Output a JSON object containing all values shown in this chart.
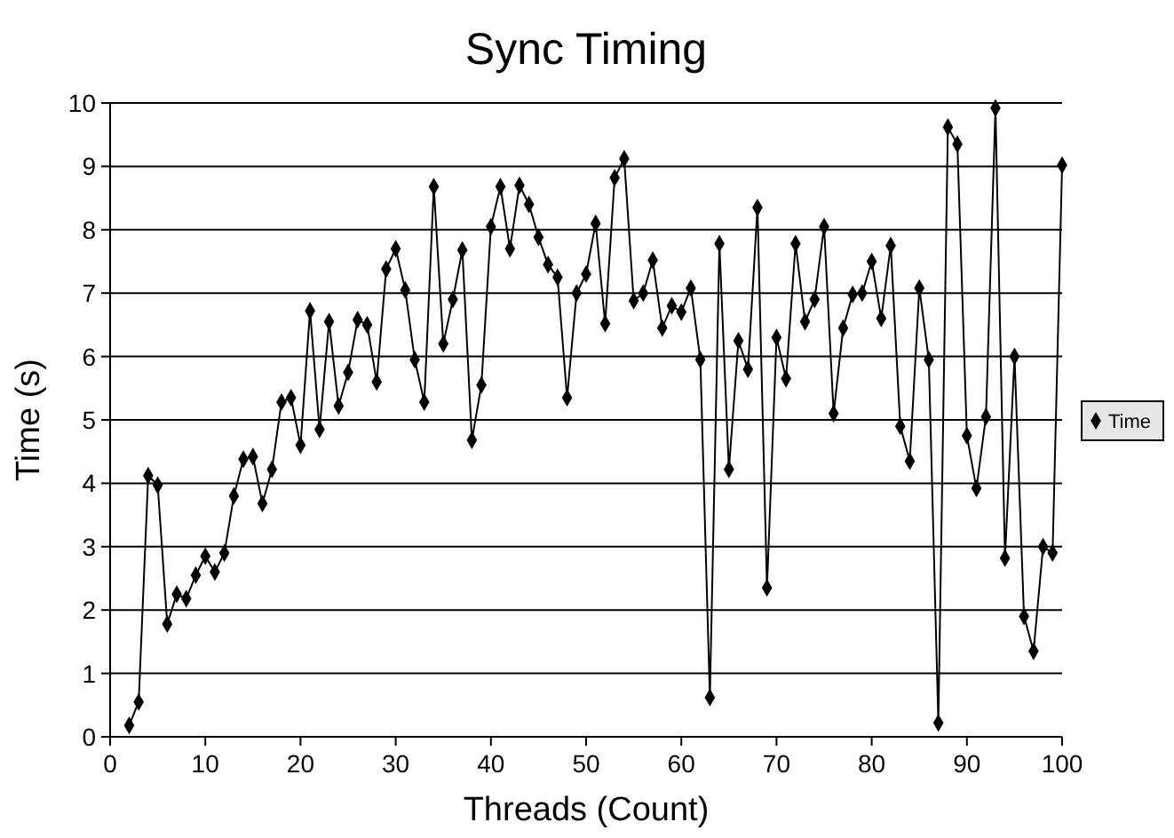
{
  "chart_data": {
    "type": "line",
    "title": "Sync Timing",
    "xlabel": "Threads (Count)",
    "ylabel": "Time (s)",
    "x": [
      2,
      3,
      4,
      5,
      6,
      7,
      8,
      9,
      10,
      11,
      12,
      13,
      14,
      15,
      16,
      17,
      18,
      19,
      20,
      21,
      22,
      23,
      24,
      25,
      26,
      27,
      28,
      29,
      30,
      31,
      32,
      33,
      34,
      35,
      36,
      37,
      38,
      39,
      40,
      41,
      42,
      43,
      44,
      45,
      46,
      47,
      48,
      49,
      50,
      51,
      52,
      53,
      54,
      55,
      56,
      57,
      58,
      59,
      60,
      61,
      62,
      63,
      64,
      65,
      66,
      67,
      68,
      69,
      70,
      71,
      72,
      73,
      74,
      75,
      76,
      77,
      78,
      79,
      80,
      81,
      82,
      83,
      84,
      85,
      86,
      87,
      88,
      89,
      90,
      91,
      92,
      93,
      94,
      95,
      96,
      97,
      98,
      99,
      100
    ],
    "series": [
      {
        "name": "Time",
        "color": "#000000",
        "values": [
          0.18,
          0.55,
          4.12,
          3.97,
          1.78,
          2.25,
          2.18,
          2.55,
          2.85,
          2.6,
          2.9,
          3.8,
          4.38,
          4.42,
          3.68,
          4.22,
          5.28,
          5.35,
          4.6,
          6.72,
          4.85,
          6.55,
          5.22,
          5.75,
          6.58,
          6.5,
          5.6,
          7.38,
          7.7,
          7.05,
          5.95,
          5.28,
          8.68,
          6.2,
          6.9,
          7.68,
          4.68,
          5.55,
          8.05,
          8.68,
          7.7,
          8.7,
          8.4,
          7.88,
          7.45,
          7.25,
          5.35,
          7.0,
          7.3,
          8.1,
          6.52,
          8.82,
          9.12,
          6.88,
          7.0,
          7.52,
          6.45,
          6.8,
          6.7,
          7.08,
          5.95,
          0.62,
          7.78,
          4.22,
          6.25,
          5.8,
          8.35,
          2.35,
          6.3,
          5.65,
          7.78,
          6.55,
          6.9,
          8.05,
          5.1,
          6.45,
          6.98,
          7.0,
          7.5,
          6.6,
          7.75,
          4.9,
          4.35,
          7.08,
          5.95,
          0.22,
          9.62,
          9.35,
          4.75,
          3.92,
          5.05,
          9.92,
          2.82,
          6.0,
          1.9,
          1.35,
          3.0,
          2.9,
          9.02
        ]
      }
    ],
    "xlim": [
      0,
      100
    ],
    "xticks": [
      0,
      10,
      20,
      30,
      40,
      50,
      60,
      70,
      80,
      90,
      100
    ],
    "ylim": [
      0,
      10
    ],
    "yticks": [
      0,
      1,
      2,
      3,
      4,
      5,
      6,
      7,
      8,
      9,
      10
    ],
    "grid": "y",
    "legend": "right",
    "marker": "diamond",
    "line_style": "solid"
  }
}
